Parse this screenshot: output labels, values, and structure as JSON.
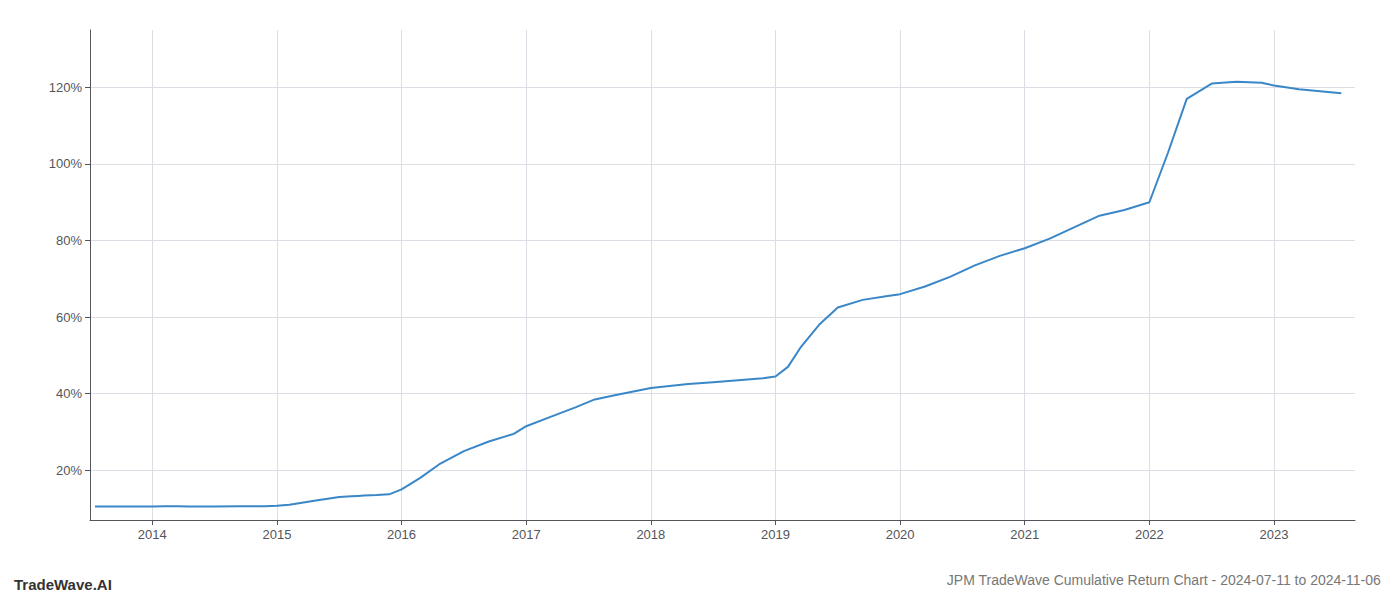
{
  "chart_data": {
    "type": "line",
    "title": "JPM TradeWave Cumulative Return Chart - 2024-07-11 to 2024-11-06",
    "annotations": [
      "TradeWave.AI"
    ],
    "x": [
      2013.54,
      2014.0,
      2014.1,
      2014.2,
      2014.3,
      2014.5,
      2014.7,
      2014.9,
      2015.0,
      2015.1,
      2015.2,
      2015.3,
      2015.5,
      2015.6,
      2015.65,
      2015.7,
      2015.8,
      2015.9,
      2016.0,
      2016.15,
      2016.3,
      2016.5,
      2016.7,
      2016.9,
      2017.0,
      2017.2,
      2017.4,
      2017.55,
      2017.7,
      2017.85,
      2018.0,
      2018.15,
      2018.3,
      2018.5,
      2018.7,
      2018.9,
      2019.0,
      2019.1,
      2019.2,
      2019.35,
      2019.5,
      2019.7,
      2019.9,
      2020.0,
      2020.2,
      2020.4,
      2020.6,
      2020.8,
      2021.0,
      2021.2,
      2021.4,
      2021.6,
      2021.8,
      2022.0,
      2022.15,
      2022.3,
      2022.5,
      2022.7,
      2022.9,
      2023.0,
      2023.2,
      2023.54
    ],
    "values": [
      10.5,
      10.5,
      10.6,
      10.6,
      10.5,
      10.5,
      10.6,
      10.6,
      10.7,
      11.0,
      11.5,
      12.0,
      13.0,
      13.2,
      13.3,
      13.4,
      13.5,
      13.7,
      15.0,
      18.0,
      21.5,
      25.0,
      27.5,
      29.5,
      31.5,
      34.0,
      36.5,
      38.5,
      39.5,
      40.5,
      41.5,
      42.0,
      42.5,
      43.0,
      43.5,
      44.0,
      44.5,
      47.0,
      52.0,
      58.0,
      62.5,
      64.5,
      65.5,
      66.0,
      68.0,
      70.5,
      73.5,
      76.0,
      78.0,
      80.5,
      83.5,
      86.5,
      88.0,
      90.0,
      103.0,
      117.0,
      121.0,
      121.5,
      121.2,
      120.5,
      119.5,
      118.5
    ],
    "color": "#3a87c8",
    "xlim": [
      2013.5,
      2023.65
    ],
    "xticks": [
      2014,
      2015,
      2016,
      2017,
      2018,
      2019,
      2020,
      2021,
      2022,
      2023
    ],
    "ylim": [
      7,
      135
    ],
    "yticks": [
      {
        "value": 20,
        "label": "20%"
      },
      {
        "value": 40,
        "label": "40%"
      },
      {
        "value": 60,
        "label": "60%"
      },
      {
        "value": 80,
        "label": "80%"
      },
      {
        "value": 100,
        "label": "100%"
      },
      {
        "value": 120,
        "label": "120%"
      }
    ],
    "grid": true
  }
}
